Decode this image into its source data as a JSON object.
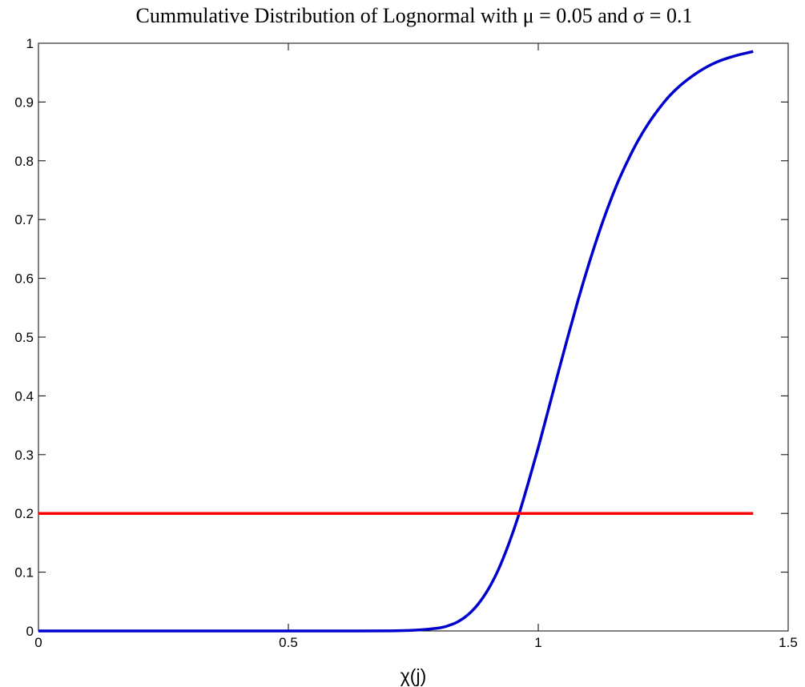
{
  "chart_data": {
    "type": "line",
    "title": "Cummulative Distribution of Lognormal with μ = 0.05 and σ = 0.1",
    "xlabel": "χ(j)",
    "ylabel": "",
    "xlim": [
      0,
      1.5
    ],
    "ylim": [
      0,
      1
    ],
    "xticks": [
      "0",
      "0.5",
      "1",
      "1.5"
    ],
    "yticks": [
      "0",
      "0.1",
      "0.2",
      "0.3",
      "0.4",
      "0.5",
      "0.6",
      "0.7",
      "0.8",
      "0.9",
      "1"
    ],
    "grid": false,
    "series": [
      {
        "color": "#0000cc",
        "x": [
          0,
          0.1,
          0.2,
          0.3,
          0.4,
          0.5,
          0.6,
          0.7,
          0.75,
          0.8,
          0.82,
          0.84,
          0.86,
          0.88,
          0.9,
          0.92,
          0.94,
          0.96,
          0.98,
          1.0,
          1.02,
          1.04,
          1.06,
          1.08,
          1.1,
          1.12,
          1.14,
          1.16,
          1.18,
          1.2,
          1.22,
          1.24,
          1.26,
          1.28,
          1.3,
          1.32,
          1.34,
          1.36,
          1.38,
          1.4,
          1.43
        ],
        "y": [
          0,
          0,
          0,
          0,
          0,
          0,
          0,
          0.0002,
          0.0012,
          0.005,
          0.009,
          0.016,
          0.028,
          0.046,
          0.071,
          0.104,
          0.146,
          0.195,
          0.252,
          0.312,
          0.376,
          0.44,
          0.503,
          0.564,
          0.621,
          0.674,
          0.722,
          0.765,
          0.802,
          0.835,
          0.863,
          0.887,
          0.908,
          0.925,
          0.939,
          0.951,
          0.961,
          0.969,
          0.975,
          0.98,
          0.986
        ]
      },
      {
        "color": "#ff0000",
        "x": [
          0,
          1.43
        ],
        "y": [
          0.2,
          0.2
        ]
      }
    ]
  }
}
